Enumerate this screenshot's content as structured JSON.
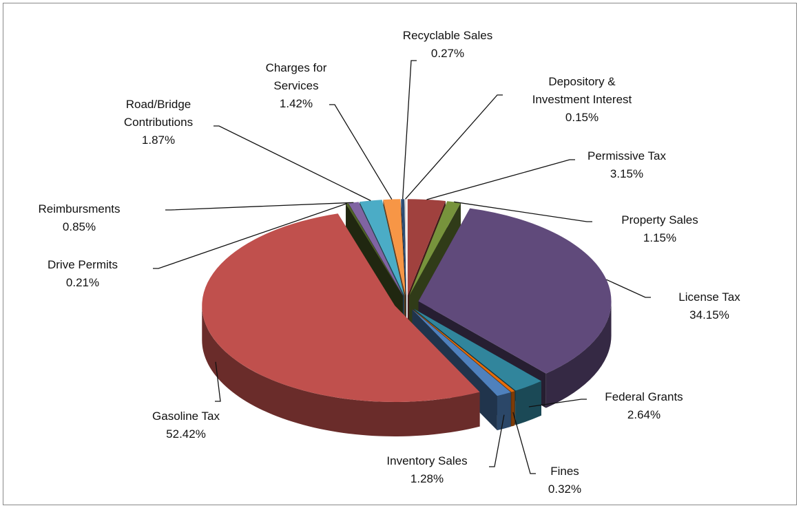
{
  "chart_data": {
    "type": "pie3d",
    "categories": [
      "Permissive Tax",
      "Property Sales",
      "License Tax",
      "Federal Grants",
      "Fines",
      "Inventory Sales",
      "Gasoline Tax",
      "Drive Permits",
      "Reimbursments",
      "Road/Bridge Contributions",
      "Charges for Services",
      "Recyclable Sales",
      "Depository & Investment Interest"
    ],
    "values": [
      3.15,
      1.15,
      34.15,
      2.64,
      0.32,
      1.28,
      52.42,
      0.21,
      0.85,
      1.87,
      1.42,
      0.27,
      0.15
    ],
    "value_labels": [
      "3.15%",
      "1.15%",
      "34.15%",
      "2.64%",
      "0.32%",
      "1.28%",
      "52.42%",
      "0.21%",
      "0.85%",
      "1.87%",
      "1.42%",
      "0.27%",
      "0.15%"
    ],
    "colors": [
      "#a0413e",
      "#77933c",
      "#604a7b",
      "#31859c",
      "#e46c0a",
      "#4f81bd",
      "#c0504d",
      "#4f6228",
      "#8064a2",
      "#4bacc6",
      "#f79646",
      "#2c4d75",
      "#d9d9d9"
    ]
  }
}
